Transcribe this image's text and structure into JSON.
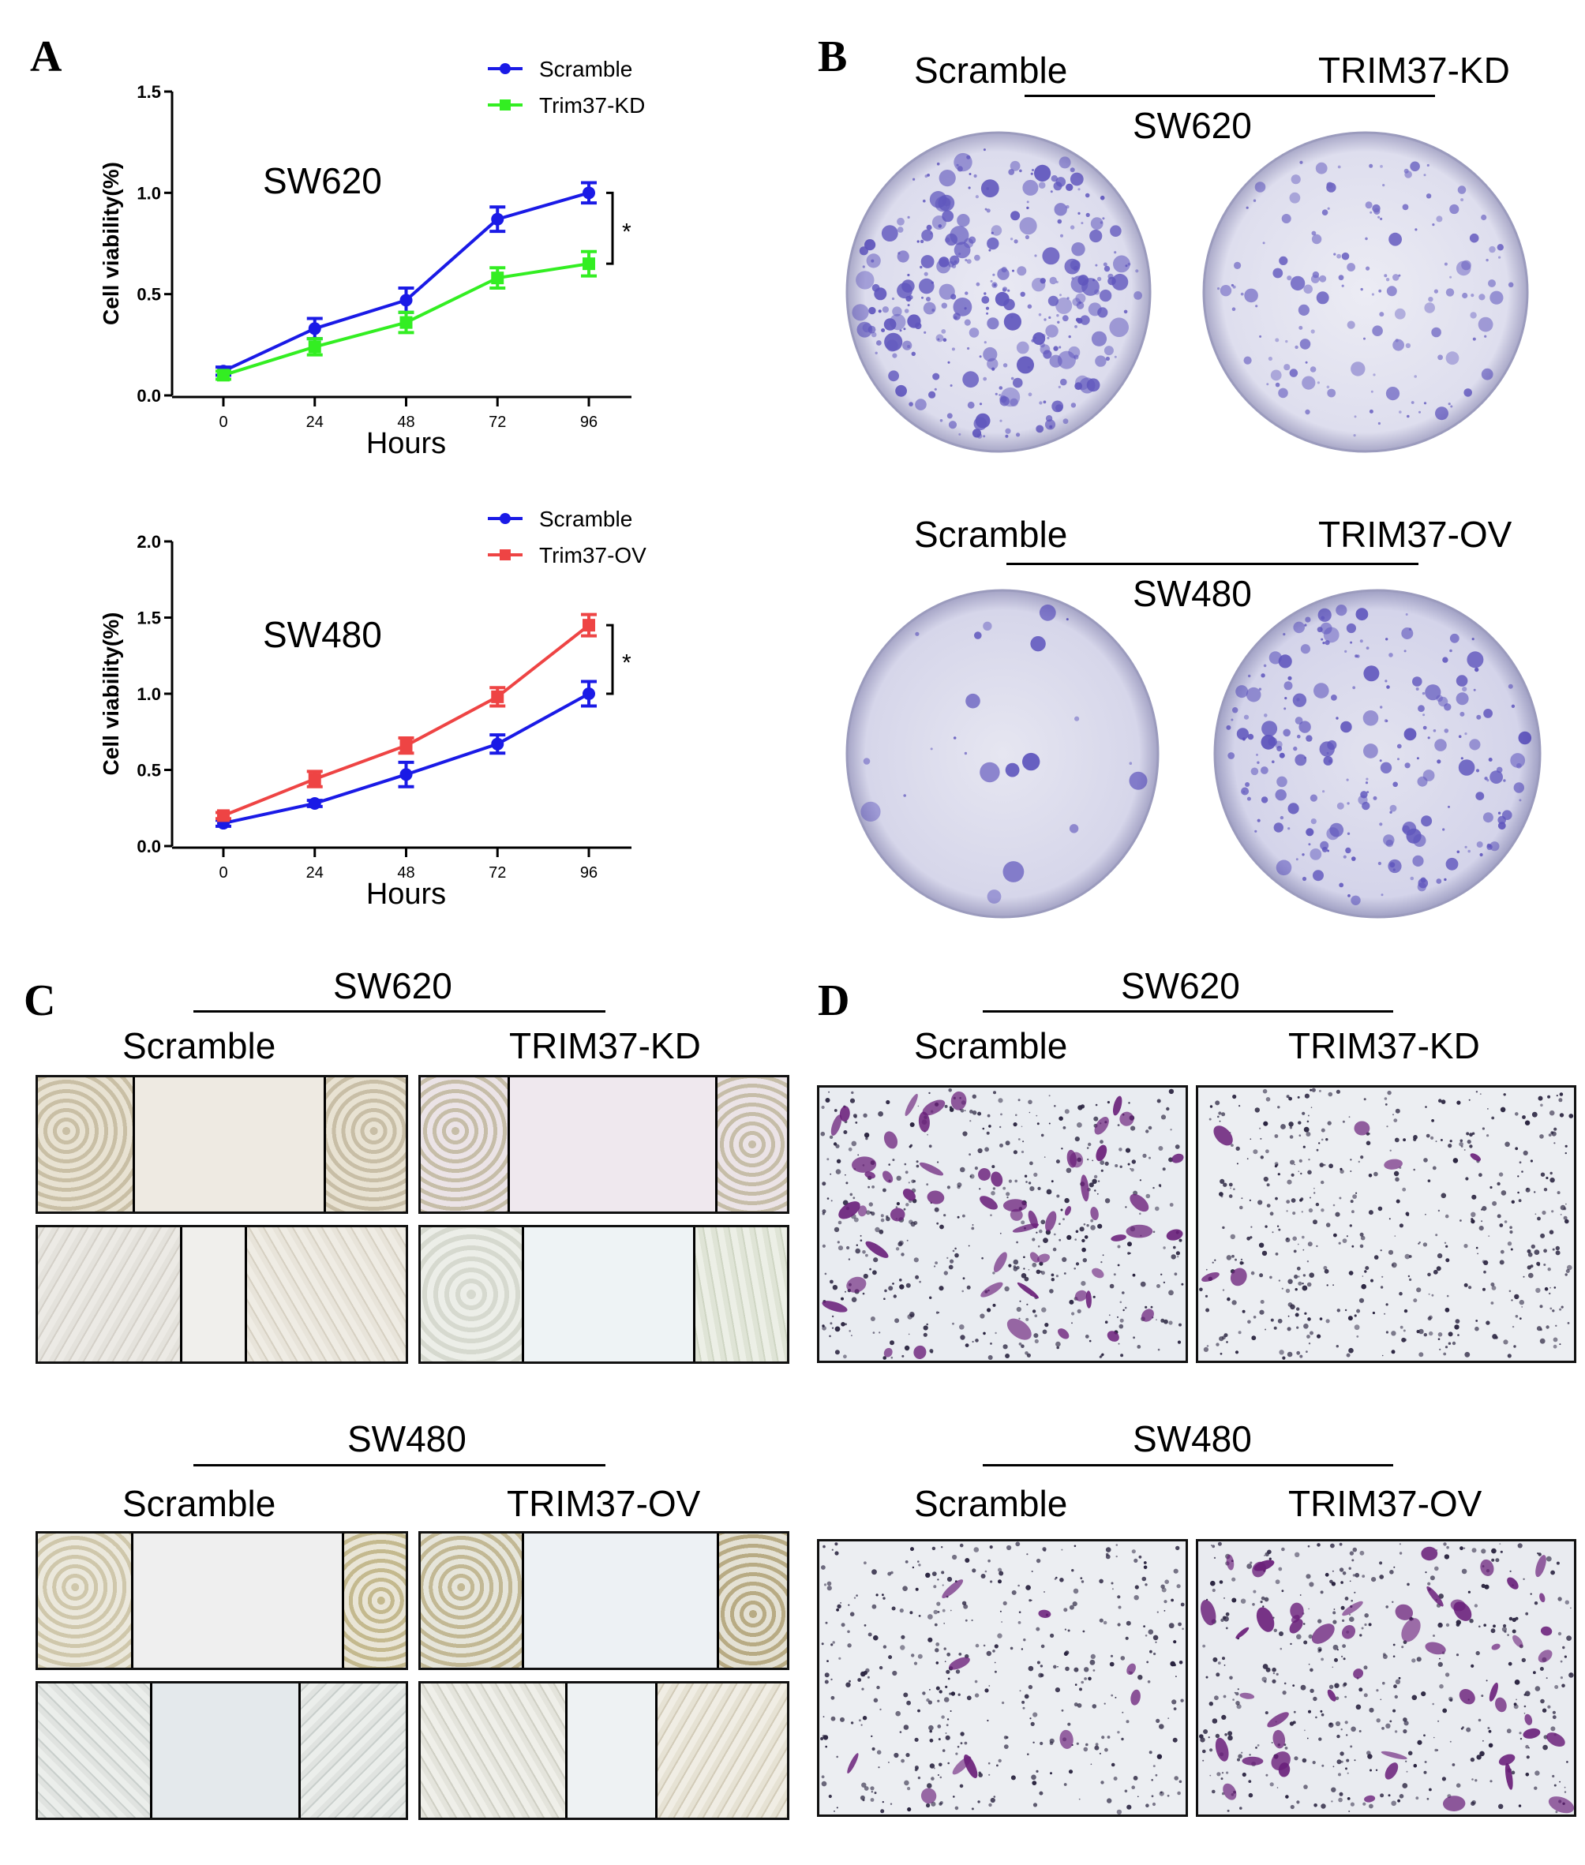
{
  "panels": {
    "A": {
      "letter": "A",
      "charts": [
        {
          "cell_line": "SW620",
          "legend": [
            "Scramble",
            "Trim37-KD"
          ],
          "significance": "*"
        },
        {
          "cell_line": "SW480",
          "legend": [
            "Scramble",
            "Trim37-OV"
          ],
          "significance": "*"
        }
      ]
    },
    "B": {
      "letter": "B",
      "groups": [
        {
          "cell_line": "SW620",
          "left": "Scramble",
          "right": "TRIM37-KD"
        },
        {
          "cell_line": "SW480",
          "left": "Scramble",
          "right": "TRIM37-OV"
        }
      ]
    },
    "C": {
      "letter": "C",
      "groups": [
        {
          "cell_line": "SW620",
          "left": "Scramble",
          "right": "TRIM37-KD"
        },
        {
          "cell_line": "SW480",
          "left": "Scramble",
          "right": "TRIM37-OV"
        }
      ]
    },
    "D": {
      "letter": "D",
      "groups": [
        {
          "cell_line": "SW620",
          "left": "Scramble",
          "right": "TRIM37-KD"
        },
        {
          "cell_line": "SW480",
          "left": "Scramble",
          "right": "TRIM37-OV"
        }
      ]
    }
  },
  "colors": {
    "scramble": "#1a1ae6",
    "knockdown": "#33ee22",
    "overexpression": "#ee4444",
    "colony_stain": "#4a3fb5",
    "transwell_stain": "#6a1f7a"
  },
  "chart_data": [
    {
      "type": "line",
      "ylabel": "Cell viability(%)",
      "xlabel": "Hours",
      "x": [
        0,
        24,
        48,
        72,
        96
      ],
      "ylim": [
        0.0,
        1.5
      ],
      "yticks": [
        "0.0",
        "0.5",
        "1.0",
        "1.5"
      ],
      "xticks": [
        "0",
        "24",
        "48",
        "72",
        "96"
      ],
      "series": [
        {
          "name": "Scramble",
          "values": [
            0.12,
            0.33,
            0.47,
            0.87,
            1.0
          ],
          "err": [
            0.02,
            0.05,
            0.06,
            0.06,
            0.05
          ]
        },
        {
          "name": "Trim37-KD",
          "values": [
            0.1,
            0.24,
            0.36,
            0.58,
            0.65
          ],
          "err": [
            0.02,
            0.04,
            0.05,
            0.05,
            0.06
          ]
        }
      ]
    },
    {
      "type": "line",
      "ylabel": "Cell viability(%)",
      "xlabel": "Hours",
      "x": [
        0,
        24,
        48,
        72,
        96
      ],
      "ylim": [
        0.0,
        2.0
      ],
      "yticks": [
        "0.0",
        "0.5",
        "1.0",
        "1.5",
        "2.0"
      ],
      "xticks": [
        "0",
        "24",
        "48",
        "72",
        "96"
      ],
      "series": [
        {
          "name": "Scramble",
          "values": [
            0.15,
            0.28,
            0.47,
            0.67,
            1.0
          ],
          "err": [
            0.02,
            0.02,
            0.08,
            0.06,
            0.08
          ]
        },
        {
          "name": "Trim37-OV",
          "values": [
            0.2,
            0.44,
            0.66,
            0.98,
            1.45
          ],
          "err": [
            0.02,
            0.05,
            0.05,
            0.06,
            0.07
          ]
        }
      ]
    }
  ]
}
